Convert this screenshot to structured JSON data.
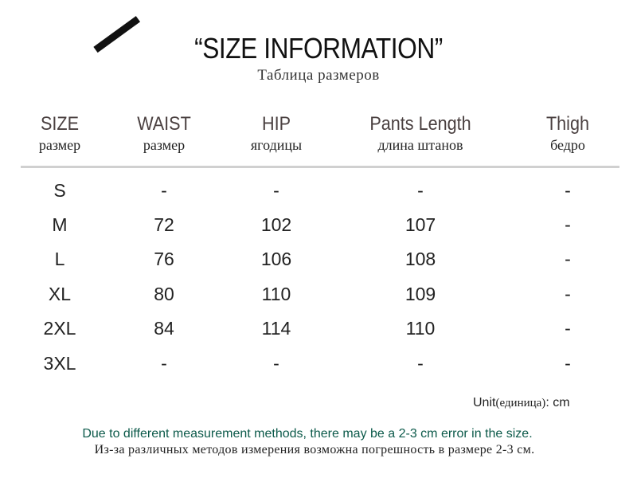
{
  "title": "“SIZE INFORMATION”",
  "subtitle": "Таблица размеров",
  "headers": [
    {
      "en": "SIZE",
      "ru": "размер"
    },
    {
      "en": "WAIST",
      "ru": "размер"
    },
    {
      "en": "HIP",
      "ru": "ягодицы"
    },
    {
      "en": "Pants Length",
      "ru": "длина штанов"
    },
    {
      "en": "Thigh",
      "ru": "бедро"
    }
  ],
  "rows": [
    [
      "S",
      "-",
      "-",
      "-",
      "-"
    ],
    [
      "M",
      "72",
      "102",
      "107",
      "-"
    ],
    [
      "L",
      "76",
      "106",
      "108",
      "-"
    ],
    [
      "XL",
      "80",
      "110",
      "109",
      "-"
    ],
    [
      "2XL",
      "84",
      "114",
      "110",
      "-"
    ],
    [
      "3XL",
      "-",
      "-",
      "-",
      "-"
    ]
  ],
  "unit": {
    "label": "Unit",
    "ru": "(единица)",
    "value": ":  cm"
  },
  "notes": {
    "en": "Due to different measurement methods, there may be a 2-3 cm error in the size.",
    "ru": "Из-за различных методов измерения возможна погрешность в размере 2-3 см."
  },
  "colors": {
    "note_en": "#0c5a4a",
    "header": "#4a4040",
    "rule": "#d0d0d0"
  }
}
